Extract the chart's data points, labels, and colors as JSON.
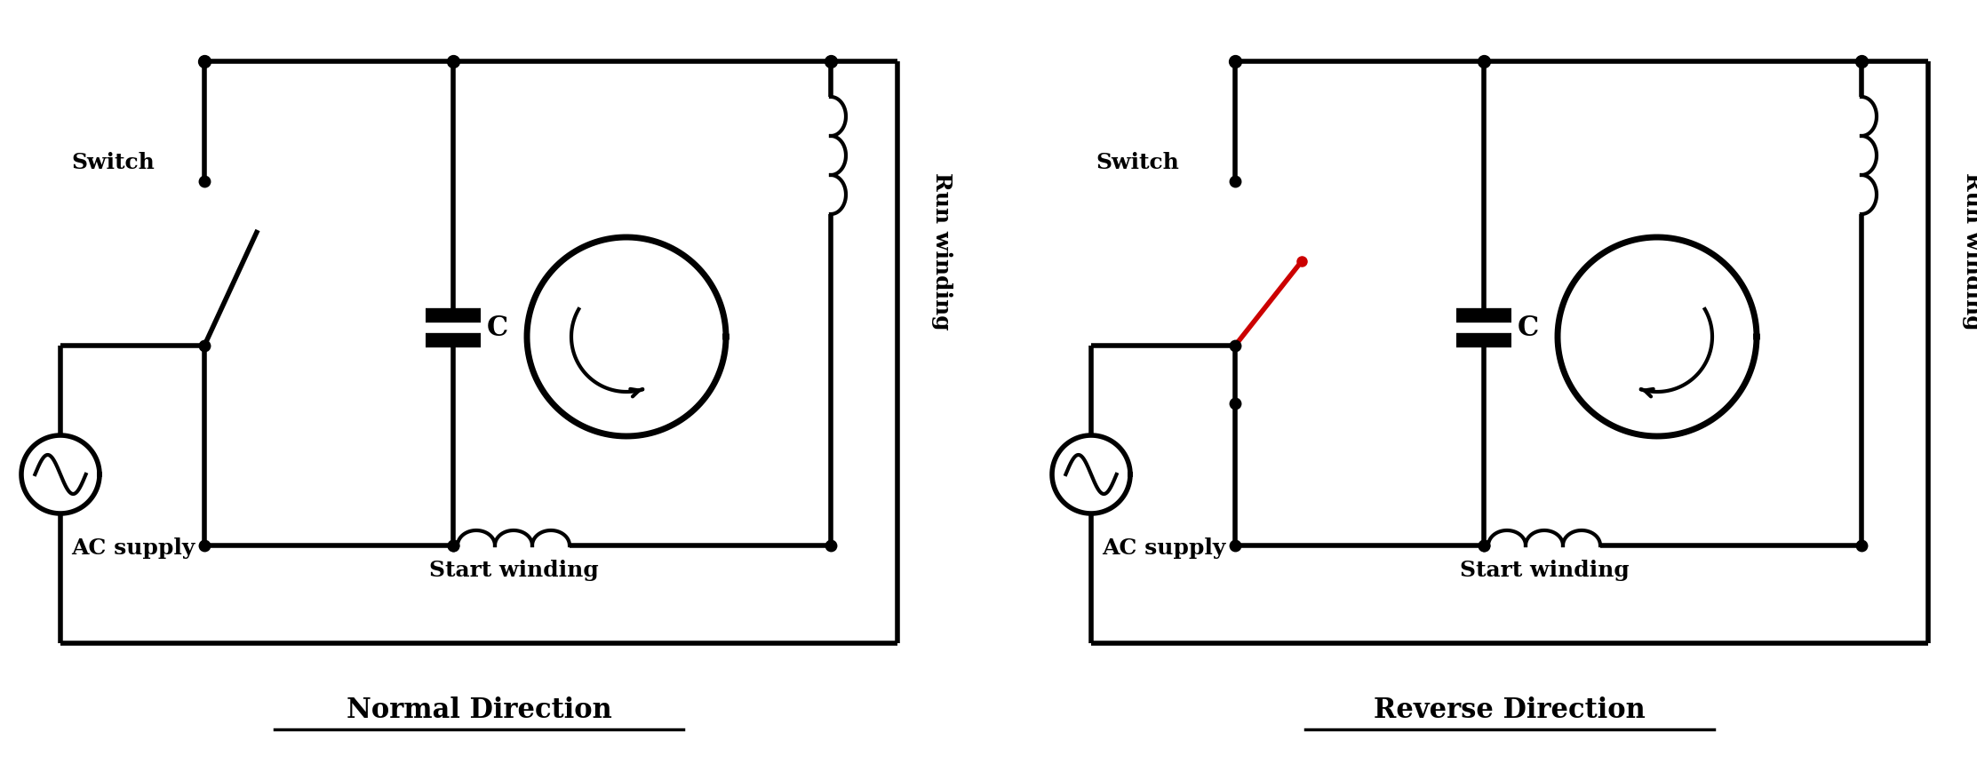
{
  "bg_color": "#ffffff",
  "line_color": "#000000",
  "red_color": "#cc0000",
  "lw": 4.0,
  "lw_coil": 3.0,
  "dot_r": 8,
  "title1": "Normal Direction",
  "title2": "Reverse Direction",
  "label_switch": "Switch",
  "label_ac": "AC supply",
  "label_start": "Start winding",
  "label_run": "Run winding",
  "label_cap": "C",
  "font_size_label": 18,
  "font_size_title": 22
}
